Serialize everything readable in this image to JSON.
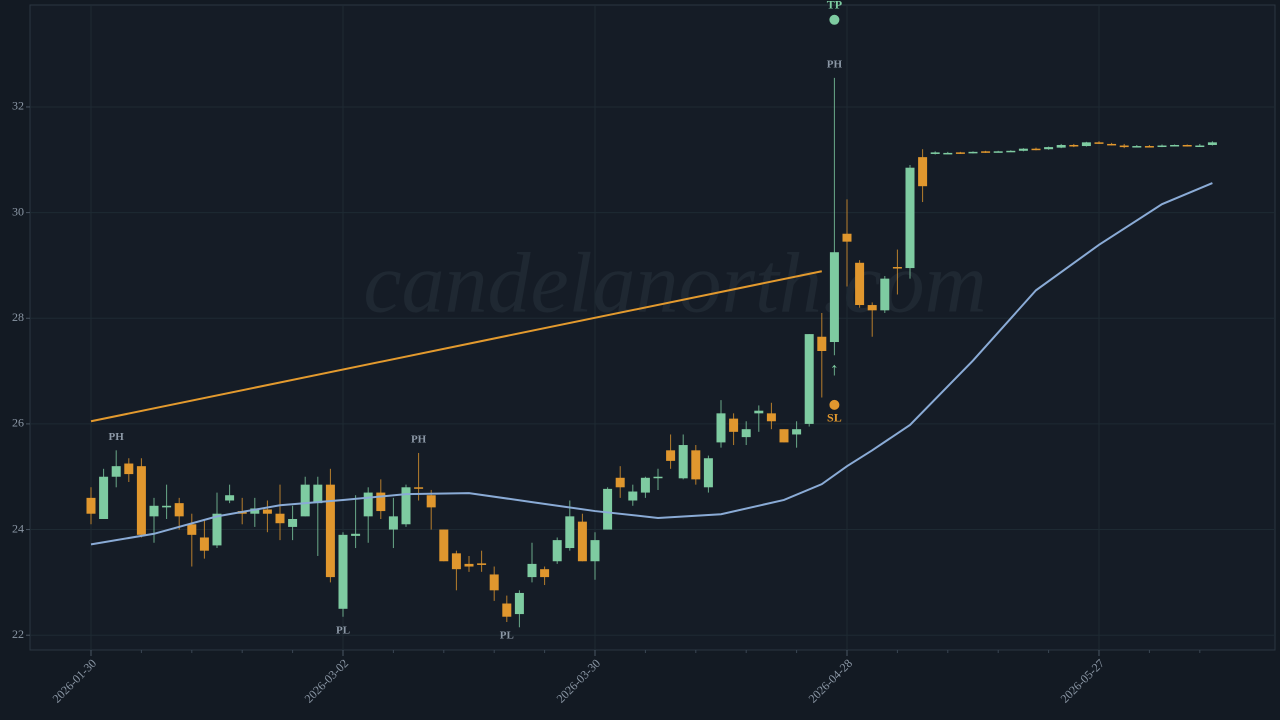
{
  "chart_data": {
    "type": "candlestick",
    "watermark": "candelanorth.com",
    "categories": [
      "2026-01-30",
      null,
      null,
      null,
      null,
      null,
      null,
      null,
      null,
      null,
      null,
      null,
      null,
      null,
      null,
      null,
      null,
      null,
      null,
      null,
      "2026-03-02",
      null,
      null,
      null,
      null,
      null,
      null,
      null,
      null,
      null,
      null,
      null,
      null,
      null,
      null,
      null,
      null,
      null,
      null,
      null,
      "2026-03-30",
      null,
      null,
      null,
      null,
      null,
      null,
      null,
      null,
      null,
      null,
      null,
      null,
      null,
      null,
      null,
      null,
      null,
      null,
      null,
      "2026-04-28",
      null,
      null,
      null,
      null,
      null,
      null,
      null,
      null,
      null,
      null,
      null,
      null,
      null,
      null,
      null,
      null,
      null,
      null,
      null,
      "2026-05-27",
      null,
      null,
      null,
      null,
      null,
      null,
      null,
      null,
      null
    ],
    "open": [
      24.6,
      24.2,
      25.0,
      25.25,
      25.2,
      24.25,
      24.42,
      24.5,
      24.1,
      23.85,
      23.7,
      24.55,
      24.35,
      24.3,
      24.38,
      24.3,
      24.05,
      24.25,
      24.5,
      24.85,
      22.5,
      23.88,
      24.25,
      24.7,
      24.0,
      24.1,
      24.8,
      24.65,
      24.0,
      23.55,
      23.35,
      23.36,
      23.15,
      22.6,
      22.4,
      23.1,
      23.25,
      23.4,
      23.65,
      24.15,
      23.4,
      24.0,
      24.98,
      24.55,
      24.7,
      24.98,
      25.5,
      24.97,
      25.5,
      24.8,
      25.65,
      26.1,
      25.75,
      26.2,
      26.2,
      25.9,
      25.8,
      26.0,
      27.65,
      27.55,
      29.6,
      29.05,
      28.25,
      28.15,
      28.97,
      28.95,
      31.05,
      31.11,
      31.12,
      31.14,
      31.13,
      31.16,
      31.15,
      31.16,
      31.17,
      31.21,
      31.2,
      31.23,
      31.28,
      31.26,
      31.33,
      31.3,
      31.27,
      31.25,
      31.26,
      31.25,
      31.27,
      31.28,
      31.26,
      31.28
    ],
    "high": [
      24.8,
      25.15,
      25.5,
      25.35,
      25.35,
      24.6,
      24.85,
      24.6,
      24.3,
      24.2,
      24.7,
      24.85,
      24.6,
      24.6,
      24.55,
      24.85,
      24.45,
      25.0,
      25.0,
      25.15,
      23.95,
      24.65,
      24.8,
      24.95,
      24.6,
      24.85,
      25.45,
      24.75,
      24.0,
      23.6,
      23.5,
      23.6,
      23.3,
      22.75,
      22.85,
      23.75,
      23.3,
      23.85,
      24.55,
      24.3,
      23.95,
      24.8,
      25.2,
      24.85,
      25.0,
      25.15,
      25.8,
      25.8,
      25.6,
      25.4,
      26.45,
      26.2,
      26.05,
      26.35,
      26.4,
      25.9,
      26.05,
      27.7,
      28.1,
      32.55,
      30.25,
      29.1,
      28.3,
      28.8,
      29.3,
      30.9,
      31.2,
      31.16,
      31.15,
      31.15,
      31.16,
      31.17,
      31.17,
      31.18,
      31.22,
      31.23,
      31.25,
      31.3,
      31.3,
      31.34,
      31.35,
      31.32,
      31.3,
      31.28,
      31.28,
      31.29,
      31.29,
      31.29,
      31.3,
      31.35
    ],
    "low": [
      24.1,
      24.2,
      24.8,
      24.9,
      23.85,
      23.75,
      24.2,
      24.0,
      23.3,
      23.45,
      23.65,
      24.5,
      24.1,
      24.05,
      23.95,
      23.8,
      23.8,
      24.25,
      23.5,
      23.0,
      22.35,
      23.65,
      23.75,
      24.2,
      23.65,
      24.05,
      24.55,
      24.0,
      23.4,
      22.85,
      23.2,
      23.2,
      22.65,
      22.25,
      22.15,
      23.0,
      22.95,
      23.35,
      23.6,
      23.4,
      23.05,
      24.0,
      24.6,
      24.45,
      24.6,
      24.75,
      25.15,
      24.95,
      24.85,
      24.7,
      25.55,
      25.6,
      25.6,
      25.85,
      25.9,
      25.65,
      25.55,
      25.95,
      26.5,
      27.3,
      28.6,
      28.2,
      27.65,
      28.1,
      28.45,
      28.75,
      30.2,
      31.1,
      31.11,
      31.11,
      31.12,
      31.13,
      31.14,
      31.15,
      31.16,
      31.18,
      31.19,
      31.22,
      31.24,
      31.25,
      31.3,
      31.27,
      31.22,
      31.24,
      31.24,
      31.24,
      31.26,
      31.25,
      31.25,
      31.27
    ],
    "close": [
      24.3,
      25.0,
      25.2,
      25.05,
      23.9,
      24.45,
      24.45,
      24.25,
      23.9,
      23.6,
      24.3,
      24.65,
      24.3,
      24.4,
      24.3,
      24.12,
      24.2,
      24.85,
      24.85,
      23.1,
      23.9,
      23.92,
      24.7,
      24.35,
      24.25,
      24.8,
      24.78,
      24.42,
      23.4,
      23.25,
      23.3,
      23.33,
      22.85,
      22.35,
      22.8,
      23.35,
      23.1,
      23.8,
      24.25,
      23.4,
      23.8,
      24.77,
      24.8,
      24.72,
      24.98,
      25.0,
      25.3,
      25.6,
      24.95,
      25.35,
      26.2,
      25.85,
      25.9,
      26.25,
      26.05,
      25.65,
      25.9,
      27.7,
      27.38,
      29.25,
      29.45,
      28.25,
      28.15,
      28.75,
      28.95,
      30.85,
      30.5,
      31.14,
      31.13,
      31.12,
      31.15,
      31.14,
      31.16,
      31.17,
      31.21,
      31.2,
      31.24,
      31.28,
      31.26,
      31.33,
      31.31,
      31.28,
      31.24,
      31.26,
      31.25,
      31.27,
      31.28,
      31.26,
      31.27,
      31.33
    ],
    "up_color": "#7ecba1",
    "down_color": "#e0972e",
    "lines": [
      {
        "color": "#8aabd6",
        "x": [
          0,
          5,
          10,
          15,
          20,
          25,
          30,
          35,
          40,
          45,
          50,
          55,
          58,
          60,
          62,
          65,
          70,
          75,
          80,
          85,
          89
        ],
        "values": [
          23.72,
          23.92,
          24.25,
          24.46,
          24.56,
          24.67,
          24.69,
          24.52,
          24.35,
          24.22,
          24.29,
          24.56,
          24.86,
          25.2,
          25.5,
          25.98,
          27.2,
          28.53,
          29.39,
          30.16,
          30.56
        ]
      },
      {
        "color": "#e39a2e",
        "x": [
          0,
          58
        ],
        "values": [
          26.05,
          28.89
        ]
      }
    ],
    "markers": [
      {
        "label": "TP",
        "x": 59,
        "value": 33.65,
        "color": "#7ecba1"
      },
      {
        "label": "SL",
        "x": 59,
        "value": 26.36,
        "color": "#e0972e"
      }
    ],
    "arrow": {
      "label": "↑",
      "x": 59,
      "value": 27.0,
      "color": "#7ecba1"
    },
    "annotations": [
      {
        "label": "PH",
        "x": 2,
        "kind": "high"
      },
      {
        "label": "PL",
        "x": 20,
        "kind": "low"
      },
      {
        "label": "PH",
        "x": 26,
        "kind": "high"
      },
      {
        "label": "PL",
        "x": 33,
        "kind": "low"
      },
      {
        "label": "PH",
        "x": 59,
        "kind": "high"
      }
    ],
    "ylim": [
      21.72,
      33.93
    ],
    "yticks": [
      22,
      24,
      26,
      28,
      30,
      32
    ],
    "grid": true
  }
}
